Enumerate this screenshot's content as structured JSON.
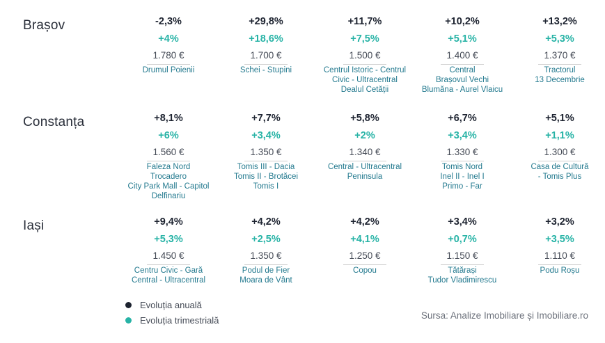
{
  "cities": [
    {
      "name": "Brașov",
      "cells": [
        {
          "annual": "-2,3%",
          "quarter": "+4%",
          "price": "1.780 €",
          "zones": [
            "Drumul Poienii"
          ]
        },
        {
          "annual": "+29,8%",
          "quarter": "+18,6%",
          "price": "1.700 €",
          "zones": [
            "Schei - Stupini"
          ]
        },
        {
          "annual": "+11,7%",
          "quarter": "+7,5%",
          "price": "1.500 €",
          "zones": [
            "Centrul Istoric - Centrul",
            "Civic - Ultracentral",
            "Dealul Cetății"
          ]
        },
        {
          "annual": "+10,2%",
          "quarter": "+5,1%",
          "price": "1.400 €",
          "zones": [
            "Central",
            "Brașovul Vechi",
            "Blumăna - Aurel Vlaicu"
          ]
        },
        {
          "annual": "+13,2%",
          "quarter": "+5,3%",
          "price": "1.370 €",
          "zones": [
            "Tractorul",
            "13 Decembrie"
          ]
        }
      ]
    },
    {
      "name": "Constanța",
      "cells": [
        {
          "annual": "+8,1%",
          "quarter": "+6%",
          "price": "1.560 €",
          "zones": [
            "Faleza Nord",
            "Trocadero",
            "City Park Mall - Capitol",
            "Delfinariu"
          ]
        },
        {
          "annual": "+7,7%",
          "quarter": "+3,4%",
          "price": "1.350 €",
          "zones": [
            "Tomis III - Dacia",
            "Tomis II - Brotăcei",
            "Tomis I"
          ]
        },
        {
          "annual": "+5,8%",
          "quarter": "+2%",
          "price": "1.340 €",
          "zones": [
            "Central - Ultracentral",
            "Peninsula"
          ]
        },
        {
          "annual": "+6,7%",
          "quarter": "+3,4%",
          "price": "1.330 €",
          "zones": [
            "Tomis Nord",
            "Inel II - Inel I",
            "Primo - Far"
          ]
        },
        {
          "annual": "+5,1%",
          "quarter": "+1,1%",
          "price": "1.300 €",
          "zones": [
            "Casa de Cultură",
            "- Tomis Plus"
          ]
        }
      ]
    },
    {
      "name": "Iași",
      "cells": [
        {
          "annual": "+9,4%",
          "quarter": "+5,3%",
          "price": "1.450 €",
          "zones": [
            "Centru Civic - Gară",
            "Central - Ultracentral"
          ]
        },
        {
          "annual": "+4,2%",
          "quarter": "+2,5%",
          "price": "1.350 €",
          "zones": [
            "Podul de Fier",
            "Moara de Vânt"
          ]
        },
        {
          "annual": "+4,2%",
          "quarter": "+4,1%",
          "price": "1.250 €",
          "zones": [
            "Copou"
          ]
        },
        {
          "annual": "+3,4%",
          "quarter": "+0,7%",
          "price": "1.150 €",
          "zones": [
            "Tătărași",
            "Tudor Vladimirescu"
          ]
        },
        {
          "annual": "+3,2%",
          "quarter": "+3,5%",
          "price": "1.110 €",
          "zones": [
            "Podu Roșu"
          ]
        }
      ]
    }
  ],
  "legend": {
    "annual_label": "Evoluția anuală",
    "annual_color": "#1d2330",
    "quarter_label": "Evoluția trimestrială",
    "quarter_color": "#27b3a6"
  },
  "source": "Sursa: Analize Imobiliare și Imobiliare.ro"
}
